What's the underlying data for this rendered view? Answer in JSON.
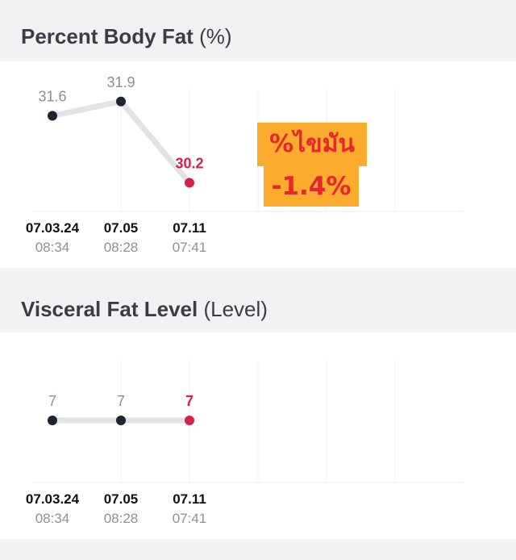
{
  "colors": {
    "background": "#f2f2f4",
    "card": "#ffffff",
    "line": "#e2e3e6",
    "point": "#1f2530",
    "latest_point": "#d6204a",
    "value_label": "#8a8f98",
    "badge_bg": "#fbab2e",
    "badge_text": "#e8262e"
  },
  "sections": [
    {
      "title": "Percent Body Fat",
      "unit": "(%)",
      "chart_data": {
        "type": "line",
        "title": "Percent Body Fat (%)",
        "x": [
          "07.03.24 08:34",
          "07.05 08:28",
          "07.11 07:41"
        ],
        "values": [
          31.6,
          31.9,
          30.2
        ],
        "value_labels": [
          "31.6",
          "31.9",
          "30.2"
        ],
        "date_labels": [
          "07.03.24",
          "07.05",
          "07.11"
        ],
        "time_labels": [
          "08:34",
          "08:28",
          "07:41"
        ],
        "ylim": [
          29.6,
          32.2
        ],
        "highlight_last": true,
        "grid": true
      },
      "badge": {
        "line1": "%ไขมัน",
        "line2": "-1.4%"
      }
    },
    {
      "title": "Visceral Fat Level",
      "unit": "(Level)",
      "chart_data": {
        "type": "line",
        "title": "Visceral Fat Level (Level)",
        "x": [
          "07.03.24 08:34",
          "07.05 08:28",
          "07.11 07:41"
        ],
        "values": [
          7,
          7,
          7
        ],
        "value_labels": [
          "7",
          "7",
          "7"
        ],
        "date_labels": [
          "07.03.24",
          "07.05",
          "07.11"
        ],
        "time_labels": [
          "08:34",
          "08:28",
          "07:41"
        ],
        "ylim": [
          6,
          8
        ],
        "highlight_last": true,
        "grid": true
      }
    }
  ]
}
